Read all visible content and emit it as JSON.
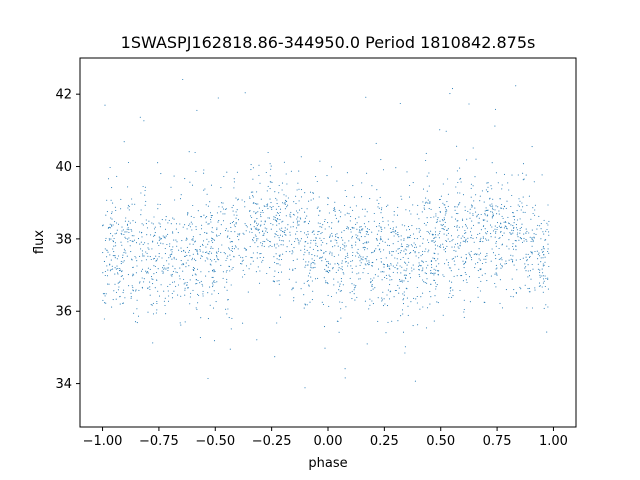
{
  "chart_data": {
    "type": "scatter",
    "title": "1SWASPJ162818.86-344950.0 Period 1810842.875s",
    "xlabel": "phase",
    "ylabel": "flux",
    "xlim": [
      -1.1,
      1.1
    ],
    "ylim": [
      32.8,
      43.0
    ],
    "x_ticks": [
      -1.0,
      -0.75,
      -0.5,
      -0.25,
      0.0,
      0.25,
      0.5,
      0.75,
      1.0
    ],
    "x_tick_labels": [
      "−1.00",
      "−0.75",
      "−0.50",
      "−0.25",
      "0.00",
      "0.25",
      "0.50",
      "0.75",
      "1.00"
    ],
    "y_ticks": [
      34,
      36,
      38,
      40,
      42
    ],
    "y_tick_labels": [
      "34",
      "36",
      "38",
      "40",
      "42"
    ],
    "grid": false,
    "legend": "none",
    "point_color": "#1f77b4",
    "series": [
      {
        "x_range": [
          -1.0,
          0.98
        ],
        "period_in_phase": 1.0,
        "profile": [
          {
            "x": -1.0,
            "y": 37.6
          },
          {
            "x": -0.9,
            "y": 37.8
          },
          {
            "x": -0.8,
            "y": 37.5
          },
          {
            "x": -0.7,
            "y": 37.4
          },
          {
            "x": -0.6,
            "y": 37.6
          },
          {
            "x": -0.5,
            "y": 37.9
          },
          {
            "x": -0.4,
            "y": 37.9
          },
          {
            "x": -0.3,
            "y": 38.3
          },
          {
            "x": -0.2,
            "y": 38.4
          },
          {
            "x": -0.1,
            "y": 37.9
          },
          {
            "x": 0.0,
            "y": 37.6
          },
          {
            "x": 0.1,
            "y": 37.8
          },
          {
            "x": 0.2,
            "y": 37.5
          },
          {
            "x": 0.3,
            "y": 37.4
          },
          {
            "x": 0.4,
            "y": 37.6
          },
          {
            "x": 0.5,
            "y": 37.9
          },
          {
            "x": 0.6,
            "y": 37.9
          },
          {
            "x": 0.7,
            "y": 38.3
          },
          {
            "x": 0.8,
            "y": 38.4
          },
          {
            "x": 0.9,
            "y": 37.9
          },
          {
            "x": 0.98,
            "y": 37.6
          }
        ],
        "scatter_spread": 0.8,
        "outlier_range": [
          33.3,
          42.6
        ]
      }
    ]
  }
}
